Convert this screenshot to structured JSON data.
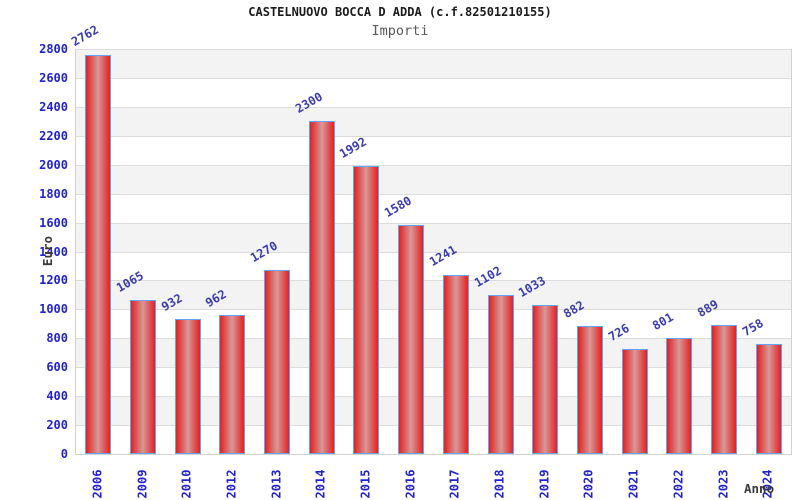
{
  "header": {
    "title": "CASTELNUOVO BOCCA D ADDA (c.f.82501210155)",
    "subtitle": "Importi"
  },
  "chart_data": {
    "type": "bar",
    "title": "CASTELNUOVO BOCCA D ADDA (c.f.82501210155)",
    "subtitle": "Importi",
    "categories": [
      "2006",
      "2009",
      "2010",
      "2012",
      "2013",
      "2014",
      "2015",
      "2016",
      "2017",
      "2018",
      "2019",
      "2020",
      "2021",
      "2022",
      "2023",
      "2024"
    ],
    "values": [
      2762,
      1065,
      932,
      962,
      1270,
      2300,
      1992,
      1580,
      1241,
      1102,
      1033,
      882,
      726,
      801,
      889,
      758
    ],
    "xlabel": "Anno",
    "ylabel": "Euro",
    "ylim": [
      0,
      2800
    ],
    "ytick_step": 200,
    "grid": true,
    "band_fill": "alternating",
    "legend": "none",
    "colors": {
      "bar_edge": "#e32020",
      "bar_center": "#d89898",
      "bar_border": "#66a3f2",
      "tick_label": "#2222cc",
      "value_label": "#3b3bb0",
      "axis_text": "#3a3a3a",
      "gridline": "#dcdcdc",
      "band": "#f3f3f3",
      "title_color": "#1b1b1b",
      "subtitle_color": "#5a5a5a"
    }
  }
}
